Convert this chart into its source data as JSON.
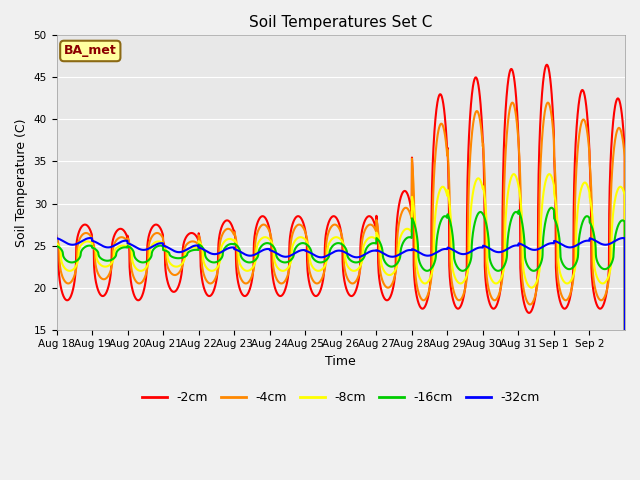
{
  "title": "Soil Temperatures Set C",
  "xlabel": "Time",
  "ylabel": "Soil Temperature (C)",
  "ylim": [
    15,
    50
  ],
  "yticks": [
    15,
    20,
    25,
    30,
    35,
    40,
    45,
    50
  ],
  "background_color": "#f0f0f0",
  "plot_bg_color": "#e8e8e8",
  "legend_label": "BA_met",
  "series_colors": {
    "-2cm": "#ff0000",
    "-4cm": "#ff8800",
    "-8cm": "#ffff00",
    "-16cm": "#00cc00",
    "-32cm": "#0000ff"
  },
  "n_days": 16,
  "base_temp": 24.0,
  "day_labels": [
    "Aug 18",
    "Aug 19",
    "Aug 20",
    "Aug 21",
    "Aug 22",
    "Aug 23",
    "Aug 24",
    "Aug 25",
    "Aug 26",
    "Aug 27",
    "Aug 28",
    "Aug 29",
    "Aug 30",
    "Aug 31",
    "Sep 1",
    "Sep 2"
  ]
}
